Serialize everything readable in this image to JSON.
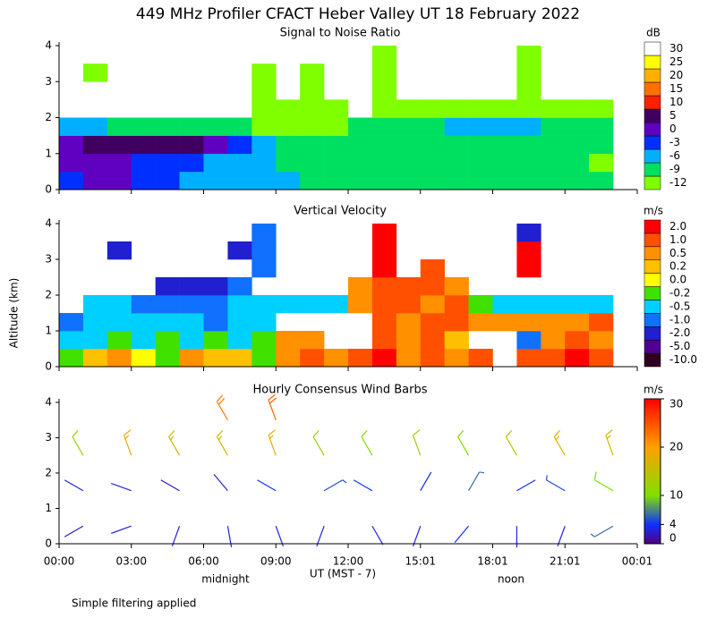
{
  "title": "449 MHz Profiler CFACT Heber Valley UT 18 February 2022",
  "ylabel": "Altitude (km)",
  "xlabel": "UT (MST - 7)",
  "notes": [
    "midnight",
    "noon"
  ],
  "footnote": "Simple filtering applied",
  "chart_data": [
    {
      "type": "heatmap",
      "title": "Signal to Noise Ratio",
      "unit": "dB",
      "xlim": [
        0,
        24
      ],
      "xticks": [
        0,
        3,
        6,
        9,
        12,
        15,
        18,
        21,
        24
      ],
      "ylim": [
        0,
        4.1
      ],
      "yticks": [
        0,
        1,
        2,
        3,
        4
      ],
      "times": [
        0.5,
        1.5,
        2.5,
        3.5,
        4.5,
        5.5,
        6.5,
        7.5,
        8.5,
        9.5,
        10.5,
        11.5,
        12.5,
        13.5,
        14.5,
        15.5,
        16.5,
        17.5,
        18.5,
        19.5,
        20.5,
        21.5,
        22.5,
        23.5
      ],
      "altitudes": [
        0.25,
        0.75,
        1.25,
        1.75,
        2.25,
        2.75,
        3.25,
        3.75
      ],
      "values": [
        [
          -3,
          0,
          0,
          -3,
          -3,
          -6,
          -6,
          -6,
          -6,
          -6,
          -9,
          -9,
          -9,
          -9,
          -9,
          -9,
          -9,
          -9,
          -9,
          -9,
          -9,
          -9,
          -9,
          null
        ],
        [
          0,
          0,
          0,
          -3,
          -3,
          -3,
          -6,
          -6,
          -6,
          -9,
          -9,
          -9,
          -9,
          -9,
          -9,
          -9,
          -9,
          -9,
          -9,
          -9,
          -9,
          -9,
          -12,
          null
        ],
        [
          0,
          5,
          5,
          5,
          5,
          5,
          0,
          -3,
          -6,
          -9,
          -9,
          -9,
          -9,
          -9,
          -9,
          -9,
          -9,
          -9,
          -9,
          -9,
          -9,
          -9,
          -9,
          null
        ],
        [
          -6,
          -6,
          -9,
          -9,
          -9,
          -9,
          -9,
          -9,
          -12,
          -12,
          -12,
          -12,
          -9,
          -9,
          -9,
          -9,
          -6,
          -6,
          -6,
          -6,
          -9,
          -9,
          -9,
          null
        ],
        [
          null,
          null,
          null,
          null,
          null,
          null,
          null,
          null,
          -12,
          -12,
          -12,
          -12,
          null,
          -12,
          -12,
          -12,
          -12,
          -12,
          -12,
          -12,
          -12,
          -12,
          -12,
          null
        ],
        [
          null,
          null,
          null,
          null,
          null,
          null,
          null,
          null,
          -12,
          null,
          -12,
          null,
          null,
          -12,
          null,
          null,
          null,
          null,
          null,
          -12,
          null,
          null,
          null,
          null
        ],
        [
          null,
          -12,
          null,
          null,
          null,
          null,
          null,
          null,
          -12,
          null,
          -12,
          null,
          null,
          -12,
          null,
          null,
          null,
          null,
          null,
          -12,
          null,
          null,
          null,
          null
        ],
        [
          null,
          null,
          null,
          null,
          null,
          null,
          null,
          null,
          null,
          null,
          null,
          null,
          null,
          -12,
          null,
          null,
          null,
          null,
          null,
          -12,
          null,
          null,
          null,
          null
        ]
      ],
      "colorbar_ticks": [
        -12,
        -9,
        -6,
        -3,
        0,
        5,
        10,
        15,
        20,
        25,
        30
      ],
      "colorbar_colors": [
        "#80ff00",
        "#00e060",
        "#00b0ff",
        "#0030ff",
        "#6000c0",
        "#400060",
        "#ff2000",
        "#ff7000",
        "#ffb000",
        "#ffff00",
        "#ffffff"
      ]
    },
    {
      "type": "heatmap",
      "title": "Vertical Velocity",
      "unit": "m/s",
      "xlim": [
        0,
        24
      ],
      "xticks": [
        0,
        3,
        6,
        9,
        12,
        15,
        18,
        21,
        24
      ],
      "ylim": [
        0,
        4.1
      ],
      "yticks": [
        0,
        1,
        2,
        3,
        4
      ],
      "times": [
        0.5,
        1.5,
        2.5,
        3.5,
        4.5,
        5.5,
        6.5,
        7.5,
        8.5,
        9.5,
        10.5,
        11.5,
        12.5,
        13.5,
        14.5,
        15.5,
        16.5,
        17.5,
        18.5,
        19.5,
        20.5,
        21.5,
        22.5,
        23.5
      ],
      "altitudes": [
        0.25,
        0.75,
        1.25,
        1.75,
        2.25,
        2.75,
        3.25,
        3.75
      ],
      "values": [
        [
          -0.2,
          0.2,
          0.5,
          0,
          -0.2,
          0.5,
          0.2,
          0.2,
          -0.2,
          0.5,
          1,
          0.5,
          1,
          2,
          0.5,
          1,
          0.5,
          1,
          null,
          1,
          1,
          2,
          1,
          null
        ],
        [
          -0.5,
          -0.5,
          -0.2,
          -0.5,
          -0.2,
          -0.5,
          -0.2,
          -0.5,
          -0.2,
          0.5,
          0.5,
          null,
          null,
          1,
          0.5,
          1,
          0.2,
          null,
          null,
          -1,
          0.5,
          1,
          0.5,
          null
        ],
        [
          -1,
          -0.5,
          -0.5,
          -0.5,
          -0.5,
          -0.5,
          -1,
          -0.5,
          -0.5,
          null,
          null,
          null,
          null,
          1,
          0.5,
          1,
          1,
          0.5,
          0.5,
          0.5,
          0.5,
          0.5,
          1,
          null
        ],
        [
          null,
          -0.5,
          -0.5,
          -1,
          -1,
          -1,
          -1,
          -0.5,
          -0.5,
          -0.5,
          -0.5,
          -0.5,
          0.5,
          1,
          1,
          0.5,
          1,
          -0.2,
          -0.5,
          -0.5,
          -0.5,
          -0.5,
          -0.5,
          null
        ],
        [
          null,
          null,
          null,
          null,
          -2,
          -2,
          -2,
          -1,
          null,
          null,
          null,
          null,
          0.5,
          1,
          1,
          1,
          0.5,
          null,
          null,
          null,
          null,
          null,
          null,
          null
        ],
        [
          null,
          null,
          null,
          null,
          null,
          null,
          null,
          null,
          -1,
          null,
          null,
          null,
          null,
          2,
          null,
          1,
          null,
          null,
          null,
          2,
          null,
          null,
          null,
          null
        ],
        [
          null,
          null,
          -2,
          null,
          null,
          null,
          null,
          -2,
          -1,
          null,
          null,
          null,
          null,
          2,
          null,
          null,
          null,
          null,
          null,
          2,
          null,
          null,
          null,
          null
        ],
        [
          null,
          null,
          null,
          null,
          null,
          null,
          null,
          null,
          -1,
          null,
          null,
          null,
          null,
          2,
          null,
          null,
          null,
          null,
          null,
          -2,
          null,
          null,
          null,
          null
        ]
      ],
      "colorbar_ticks": [
        {
          "value": -10,
          "label": "-10.0"
        },
        {
          "value": -5,
          "label": "-5.0"
        },
        {
          "value": -2,
          "label": "-2.0"
        },
        {
          "value": -1,
          "label": "-1.0"
        },
        -0.5,
        -0.2,
        {
          "value": 0,
          "label": "0.0"
        },
        0.2,
        0.5,
        {
          "value": 1,
          "label": "1.0"
        },
        {
          "value": 2,
          "label": "2.0"
        }
      ],
      "colorbar_colors": [
        "#300020",
        "#500090",
        "#2020d0",
        "#1070ff",
        "#00d0ff",
        "#40e000",
        "#ffff00",
        "#ffc000",
        "#ff9000",
        "#ff5000",
        "#ff0000"
      ]
    },
    {
      "type": "barbs",
      "title": "Hourly Consensus Wind Barbs",
      "unit": "m/s",
      "xlim": [
        0,
        24
      ],
      "xticks": [
        {
          "value": 0,
          "label": "00:00"
        },
        {
          "value": 3,
          "label": "03:00"
        },
        {
          "value": 6,
          "label": "06:00"
        },
        {
          "value": 9,
          "label": "09:00"
        },
        {
          "value": 12,
          "label": "12:00"
        },
        {
          "value": 15,
          "label": "15:01"
        },
        {
          "value": 18,
          "label": "18:01"
        },
        {
          "value": 21,
          "label": "21:01"
        },
        {
          "value": 24,
          "label": "00:01"
        }
      ],
      "ylim": [
        0,
        4.1
      ],
      "yticks": [
        0,
        1,
        2,
        3,
        4
      ],
      "times": [
        1,
        1,
        1,
        3,
        3,
        3,
        5,
        5,
        5,
        7,
        7,
        7,
        7,
        9,
        9,
        9,
        9,
        11,
        11,
        11,
        13,
        13,
        13,
        15,
        15,
        15,
        17,
        17,
        17,
        19,
        19,
        19,
        21,
        21,
        21,
        23,
        23,
        23
      ],
      "altitudes": [
        0.5,
        1.5,
        2.5,
        0.5,
        1.5,
        2.5,
        0.5,
        1.5,
        2.5,
        0.5,
        1.5,
        2.5,
        3.5,
        0.5,
        1.5,
        2.5,
        3.5,
        0.5,
        1.5,
        2.5,
        0.5,
        1.5,
        2.5,
        0.5,
        1.5,
        2.5,
        0.5,
        1.5,
        2.5,
        0.5,
        1.5,
        2.5,
        0.5,
        1.5,
        2.5,
        0.5,
        1.5,
        2.5
      ],
      "speeds": [
        2,
        3,
        12,
        3,
        3,
        18,
        3,
        2,
        16,
        3,
        3,
        16,
        22,
        3,
        4,
        18,
        24,
        3,
        5,
        12,
        3,
        4,
        10,
        3,
        3,
        12,
        4,
        6,
        10,
        3,
        4,
        14,
        3,
        5,
        18,
        6,
        10,
        16
      ],
      "directions": [
        240,
        300,
        330,
        250,
        290,
        340,
        200,
        300,
        330,
        170,
        320,
        330,
        330,
        160,
        300,
        340,
        340,
        200,
        60,
        330,
        150,
        300,
        330,
        200,
        30,
        340,
        220,
        30,
        330,
        180,
        60,
        330,
        200,
        300,
        330,
        240,
        300,
        340
      ],
      "colorbar_ticks": [
        0,
        4,
        10,
        20,
        30
      ],
      "colorbar_colors": [
        "#500080",
        "#1030ff",
        "#80e000",
        "#ffa000",
        "#ff0000"
      ]
    }
  ]
}
